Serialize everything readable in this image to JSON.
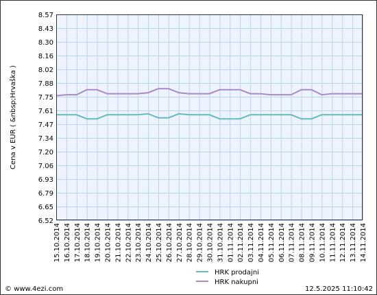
{
  "chart_data": {
    "type": "line",
    "ylabel": "Cena v EUR ( &nbsp;Hrvaška )",
    "ylim": [
      6.52,
      8.57
    ],
    "yticks": [
      "8.57",
      "8.43",
      "8.30",
      "8.16",
      "8.02",
      "7.88",
      "7.75",
      "7.61",
      "7.47",
      "7.34",
      "7.20",
      "7.06",
      "6.93",
      "6.79",
      "6.65",
      "6.52"
    ],
    "categories": [
      "15.10.2014",
      "16.10.2014",
      "17.10.2014",
      "18.10.2014",
      "19.10.2014",
      "20.10.2014",
      "21.10.2014",
      "22.10.2014",
      "23.10.2014",
      "24.10.2014",
      "25.10.2014",
      "26.10.2014",
      "27.10.2014",
      "28.10.2014",
      "29.10.2014",
      "30.10.2014",
      "31.10.2014",
      "01.11.2014",
      "02.11.2014",
      "03.11.2014",
      "04.11.2014",
      "05.11.2014",
      "06.11.2014",
      "07.11.2014",
      "08.11.2014",
      "09.11.2014",
      "10.11.2014",
      "11.11.2014",
      "12.11.2014",
      "13.11.2014",
      "14.11.2014"
    ],
    "series": [
      {
        "name": "HRK prodajni",
        "color": "#66bbbb",
        "values": [
          7.57,
          7.57,
          7.57,
          7.53,
          7.53,
          7.57,
          7.57,
          7.57,
          7.57,
          7.58,
          7.54,
          7.54,
          7.58,
          7.57,
          7.57,
          7.57,
          7.53,
          7.53,
          7.53,
          7.57,
          7.57,
          7.57,
          7.57,
          7.57,
          7.53,
          7.53,
          7.57,
          7.57,
          7.57,
          7.57,
          7.57
        ]
      },
      {
        "name": "HRK nakupni",
        "color": "#aa88cc",
        "values": [
          7.76,
          7.77,
          7.77,
          7.82,
          7.82,
          7.78,
          7.78,
          7.78,
          7.78,
          7.79,
          7.83,
          7.83,
          7.79,
          7.78,
          7.78,
          7.78,
          7.82,
          7.82,
          7.82,
          7.78,
          7.78,
          7.77,
          7.77,
          7.77,
          7.82,
          7.82,
          7.77,
          7.78,
          7.78,
          7.78,
          7.78
        ]
      }
    ],
    "grid": true,
    "legend_position": "bottom-center",
    "plot_background": "#eef4ff",
    "grid_color": "#b8d4f0"
  },
  "footer": {
    "left": "© www.4ezi.com",
    "right": "12.5.2025 11:10:42"
  }
}
